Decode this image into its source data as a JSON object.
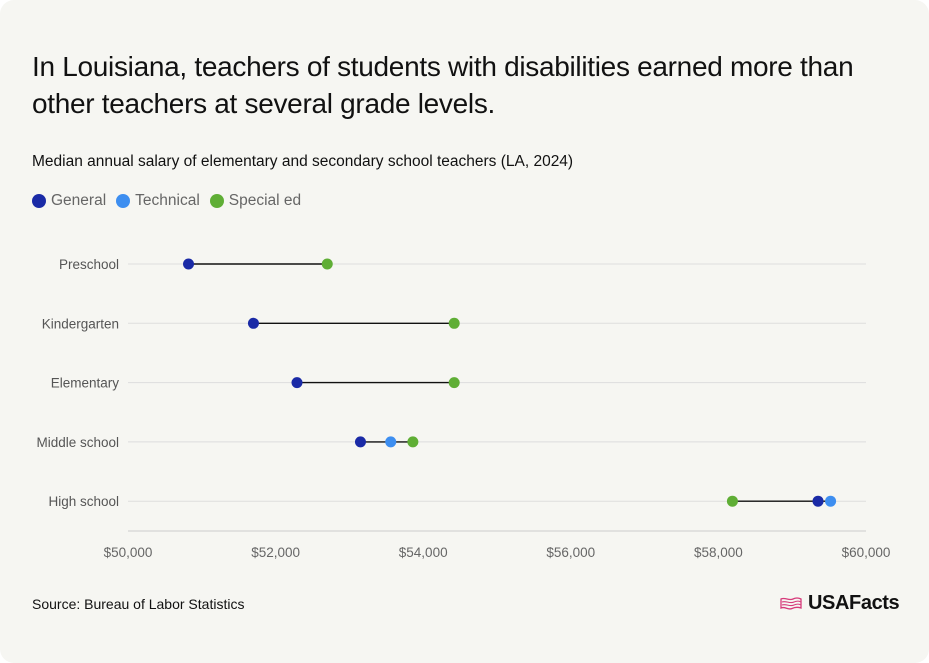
{
  "title": "In Louisiana, teachers of students with disabilities earned more than other teachers at several grade levels.",
  "subtitle": "Median annual salary of elementary and secondary school teachers (LA, 2024)",
  "source": "Source: Bureau of Labor Statistics",
  "brand": "USAFacts",
  "colors": {
    "General": "#1a2aa6",
    "Technical": "#3d8ef0",
    "Special ed": "#5fae35",
    "connector": "#111111",
    "grid": "#dddddd"
  },
  "legend": [
    {
      "name": "General",
      "color": "#1a2aa6"
    },
    {
      "name": "Technical",
      "color": "#3d8ef0"
    },
    {
      "name": "Special ed",
      "color": "#5fae35"
    }
  ],
  "chart_data": {
    "type": "dumbbell",
    "categories": [
      "Preschool",
      "Kindergarten",
      "Elementary",
      "Middle school",
      "High school"
    ],
    "series": [
      {
        "name": "General",
        "values": [
          50820,
          51700,
          52290,
          53150,
          59350
        ]
      },
      {
        "name": "Technical",
        "values": [
          null,
          null,
          null,
          53560,
          59520
        ]
      },
      {
        "name": "Special ed",
        "values": [
          52700,
          54420,
          54420,
          53860,
          58190
        ]
      }
    ],
    "xlim": [
      50000,
      60000
    ],
    "xticks": [
      50000,
      52000,
      54000,
      56000,
      58000,
      60000
    ],
    "xtick_labels": [
      "$50,000",
      "$52,000",
      "$54,000",
      "$56,000",
      "$58,000",
      "$60,000"
    ],
    "title": "Median annual salary of elementary and secondary school teachers (LA, 2024)",
    "xlabel": "",
    "ylabel": "",
    "grid": true,
    "legend_position": "top-left"
  }
}
